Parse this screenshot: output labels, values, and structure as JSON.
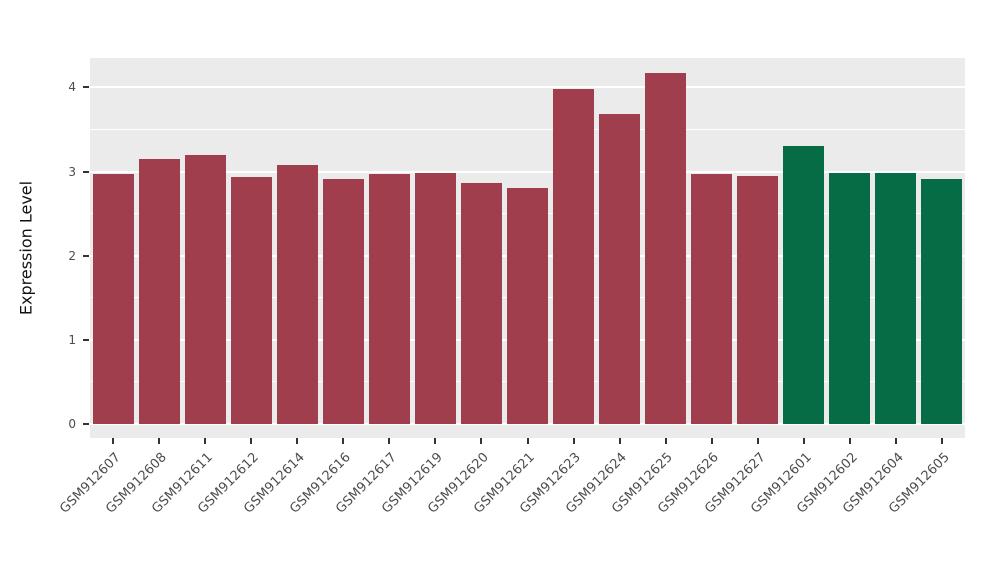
{
  "chart_data": {
    "type": "bar",
    "title": "",
    "xlabel": "",
    "ylabel": "Expression Level",
    "ylim": [
      0,
      4.35
    ],
    "y_ticks": [
      0,
      1,
      2,
      3,
      4
    ],
    "y_minor_ticks": [
      0.5,
      1.5,
      2.5,
      3.5
    ],
    "grid": true,
    "legend": false,
    "categories": [
      "GSM912607",
      "GSM912608",
      "GSM912611",
      "GSM912612",
      "GSM912614",
      "GSM912616",
      "GSM912617",
      "GSM912619",
      "GSM912620",
      "GSM912621",
      "GSM912623",
      "GSM912624",
      "GSM912625",
      "GSM912626",
      "GSM912627",
      "GSM912601",
      "GSM912602",
      "GSM912604",
      "GSM912605"
    ],
    "values": [
      2.97,
      3.15,
      3.2,
      2.93,
      3.08,
      2.91,
      2.97,
      2.98,
      2.87,
      2.81,
      3.98,
      3.68,
      4.17,
      2.97,
      2.95,
      3.3,
      2.98,
      2.98,
      2.91
    ],
    "bar_colors": [
      "#A13E4E",
      "#A13E4E",
      "#A13E4E",
      "#A13E4E",
      "#A13E4E",
      "#A13E4E",
      "#A13E4E",
      "#A13E4E",
      "#A13E4E",
      "#A13E4E",
      "#A13E4E",
      "#A13E4E",
      "#A13E4E",
      "#A13E4E",
      "#A13E4E",
      "#066C46",
      "#066C46",
      "#066C46",
      "#066C46"
    ]
  },
  "style": {
    "panel_background": "#EBEBEB",
    "grid_color": "#FFFFFF",
    "tick_color": "#333333",
    "label_color": "#4D4D4D"
  }
}
